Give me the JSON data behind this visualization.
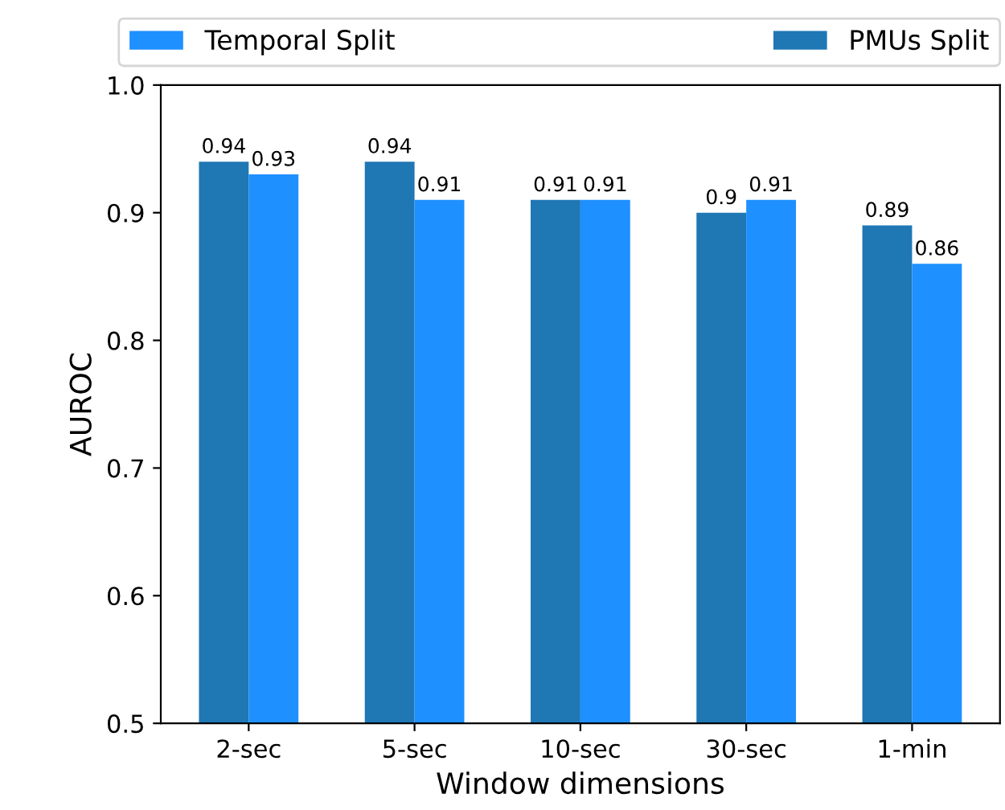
{
  "chart_data": {
    "type": "bar",
    "xlabel": "Window dimensions",
    "ylabel": "AUROC",
    "categories": [
      "2-sec",
      "5-sec",
      "10-sec",
      "30-sec",
      "1-min"
    ],
    "series": [
      {
        "name": "PMUs Split",
        "color": "#1f77b4",
        "values": [
          0.94,
          0.94,
          0.91,
          0.9,
          0.89
        ]
      },
      {
        "name": "Temporal Split",
        "color": "#1e90ff",
        "values": [
          0.93,
          0.91,
          0.91,
          0.91,
          0.86
        ]
      }
    ],
    "ylim": [
      0.5,
      1.0
    ],
    "yticks": [
      0.5,
      0.6,
      0.7,
      0.8,
      0.9,
      {
        "value": 1.0,
        "label": "1.0"
      }
    ],
    "data_labels": true,
    "grid": false,
    "legend": "top"
  }
}
